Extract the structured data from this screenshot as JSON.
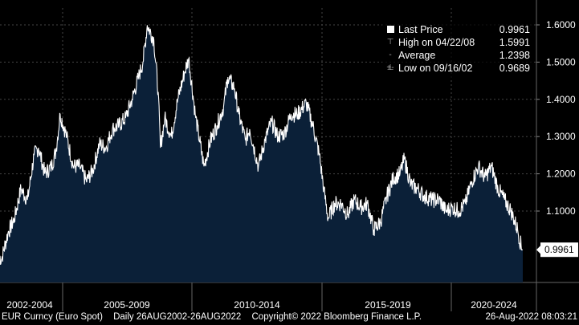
{
  "chart_data": {
    "type": "area",
    "series": [
      {
        "name": "Last Price",
        "x": [
          "2002-08",
          "2002-09",
          "2002-12",
          "2003-03",
          "2003-06",
          "2003-09",
          "2003-12",
          "2004-02",
          "2004-05",
          "2004-08",
          "2004-10",
          "2004-12",
          "2005-03",
          "2005-06",
          "2005-09",
          "2005-12",
          "2006-03",
          "2006-06",
          "2006-09",
          "2006-12",
          "2007-03",
          "2007-06",
          "2007-09",
          "2007-12",
          "2008-02",
          "2008-04",
          "2008-07",
          "2008-09",
          "2008-10",
          "2008-12",
          "2009-03",
          "2009-06",
          "2009-09",
          "2009-11",
          "2010-02",
          "2010-06",
          "2010-09",
          "2010-12",
          "2011-03",
          "2011-05",
          "2011-08",
          "2011-10",
          "2012-01",
          "2012-03",
          "2012-07",
          "2012-10",
          "2013-01",
          "2013-04",
          "2013-07",
          "2013-10",
          "2014-01",
          "2014-05",
          "2014-08",
          "2014-11",
          "2015-01",
          "2015-03",
          "2015-06",
          "2015-09",
          "2015-12",
          "2016-03",
          "2016-06",
          "2016-09",
          "2016-12",
          "2017-03",
          "2017-06",
          "2017-09",
          "2017-12",
          "2018-02",
          "2018-05",
          "2018-08",
          "2018-11",
          "2019-03",
          "2019-06",
          "2019-09",
          "2019-12",
          "2020-03",
          "2020-06",
          "2020-09",
          "2020-12",
          "2021-03",
          "2021-06",
          "2021-09",
          "2021-12",
          "2022-03",
          "2022-06",
          "2022-08"
        ],
        "values": [
          0.98,
          0.9689,
          1.04,
          1.08,
          1.16,
          1.13,
          1.25,
          1.27,
          1.2,
          1.22,
          1.26,
          1.36,
          1.3,
          1.22,
          1.22,
          1.18,
          1.21,
          1.28,
          1.27,
          1.32,
          1.33,
          1.35,
          1.4,
          1.46,
          1.5,
          1.5991,
          1.56,
          1.42,
          1.27,
          1.35,
          1.3,
          1.4,
          1.47,
          1.51,
          1.36,
          1.22,
          1.29,
          1.33,
          1.38,
          1.46,
          1.43,
          1.36,
          1.29,
          1.32,
          1.22,
          1.29,
          1.34,
          1.3,
          1.31,
          1.36,
          1.36,
          1.39,
          1.33,
          1.25,
          1.16,
          1.08,
          1.12,
          1.12,
          1.09,
          1.13,
          1.11,
          1.12,
          1.05,
          1.07,
          1.14,
          1.19,
          1.2,
          1.24,
          1.17,
          1.16,
          1.14,
          1.13,
          1.13,
          1.1,
          1.11,
          1.1,
          1.12,
          1.18,
          1.22,
          1.19,
          1.22,
          1.16,
          1.13,
          1.1,
          1.05,
          0.9961
        ]
      }
    ],
    "y_ticks": [
      "1.6000",
      "1.5000",
      "1.4000",
      "1.3000",
      "1.2000",
      "1.1000"
    ],
    "ylim": [
      0.92,
      1.62
    ],
    "x_labels": [
      "2002-2004",
      "2005-2009",
      "2010-2014",
      "2015-2019",
      "2020-2024"
    ],
    "last_value_label": "0.9961",
    "area_color": "#0b2038",
    "line_color": "#ffffff",
    "grid": true
  },
  "legend": {
    "items": [
      {
        "label": "Last Price",
        "value": "0.9961"
      },
      {
        "label": "High on 04/22/08",
        "value": "1.5991"
      },
      {
        "label": "Average",
        "value": "1.2398"
      },
      {
        "label": "Low on 09/16/02",
        "value": "0.9689"
      }
    ]
  },
  "footer": {
    "ticker": "EUR Curncy (Euro Spot)",
    "range": "Daily 26AUG2002-26AUG2022",
    "copyright": "Copyright© 2022 Bloomberg Finance L.P.",
    "timestamp": "26-Aug-2022 08:03:21"
  }
}
